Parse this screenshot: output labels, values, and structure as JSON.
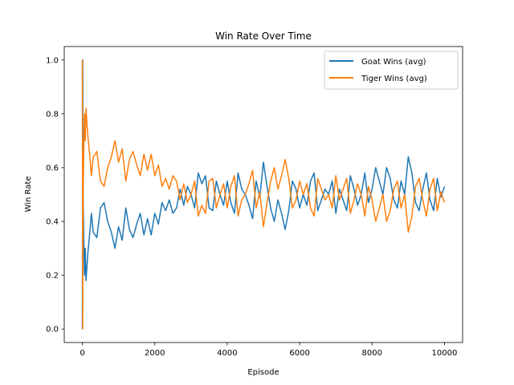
{
  "chart_data": {
    "type": "line",
    "title": "Win Rate Over Time",
    "xlabel": "Episode",
    "ylabel": "Win Rate",
    "xlim": [
      -500,
      10500
    ],
    "ylim": [
      -0.05,
      1.05
    ],
    "xticks": [
      0,
      2000,
      4000,
      6000,
      8000,
      10000
    ],
    "yticks": [
      0.0,
      0.2,
      0.4,
      0.6,
      0.8,
      1.0
    ],
    "xtick_labels": [
      "0",
      "2000",
      "4000",
      "6000",
      "8000",
      "10000"
    ],
    "ytick_labels": [
      "0.0",
      "0.2",
      "0.4",
      "0.6",
      "0.8",
      "1.0"
    ],
    "grid": false,
    "legend_position": "top-right",
    "series": [
      {
        "name": "Goat Wins (avg)",
        "color": "#1f77b4",
        "x": [
          0,
          10,
          20,
          40,
          60,
          80,
          100,
          150,
          200,
          250,
          300,
          400,
          500,
          600,
          700,
          800,
          900,
          1000,
          1100,
          1200,
          1300,
          1400,
          1500,
          1600,
          1700,
          1800,
          1900,
          2000,
          2100,
          2200,
          2300,
          2400,
          2500,
          2600,
          2700,
          2800,
          2900,
          3000,
          3100,
          3200,
          3300,
          3400,
          3500,
          3600,
          3700,
          3800,
          3900,
          4000,
          4100,
          4200,
          4300,
          4400,
          4500,
          4600,
          4700,
          4800,
          4900,
          5000,
          5100,
          5200,
          5300,
          5400,
          5500,
          5600,
          5700,
          5800,
          5900,
          6000,
          6100,
          6200,
          6300,
          6400,
          6500,
          6600,
          6700,
          6800,
          6900,
          7000,
          7100,
          7200,
          7300,
          7400,
          7500,
          7600,
          7700,
          7800,
          7900,
          8000,
          8100,
          8200,
          8300,
          8400,
          8500,
          8600,
          8700,
          8800,
          8900,
          9000,
          9100,
          9200,
          9300,
          9400,
          9500,
          9600,
          9700,
          9800,
          9900,
          10000
        ],
        "y": [
          0.0,
          1.0,
          0.5,
          0.33,
          0.2,
          0.3,
          0.18,
          0.28,
          0.35,
          0.43,
          0.36,
          0.34,
          0.45,
          0.47,
          0.4,
          0.36,
          0.3,
          0.38,
          0.33,
          0.45,
          0.37,
          0.34,
          0.39,
          0.43,
          0.35,
          0.41,
          0.35,
          0.43,
          0.39,
          0.47,
          0.44,
          0.48,
          0.43,
          0.45,
          0.52,
          0.46,
          0.53,
          0.5,
          0.45,
          0.58,
          0.54,
          0.57,
          0.45,
          0.44,
          0.55,
          0.5,
          0.46,
          0.55,
          0.47,
          0.43,
          0.58,
          0.52,
          0.5,
          0.46,
          0.41,
          0.55,
          0.49,
          0.62,
          0.53,
          0.45,
          0.4,
          0.48,
          0.43,
          0.37,
          0.44,
          0.55,
          0.52,
          0.45,
          0.5,
          0.46,
          0.55,
          0.58,
          0.44,
          0.48,
          0.52,
          0.5,
          0.55,
          0.43,
          0.52,
          0.48,
          0.44,
          0.57,
          0.52,
          0.46,
          0.5,
          0.58,
          0.47,
          0.52,
          0.6,
          0.55,
          0.5,
          0.6,
          0.56,
          0.48,
          0.45,
          0.55,
          0.5,
          0.64,
          0.58,
          0.47,
          0.44,
          0.52,
          0.58,
          0.48,
          0.44,
          0.56,
          0.49,
          0.53
        ]
      },
      {
        "name": "Tiger Wins (avg)",
        "color": "#ff7f0e",
        "x": [
          0,
          10,
          20,
          40,
          60,
          80,
          100,
          150,
          200,
          250,
          300,
          400,
          500,
          600,
          700,
          800,
          900,
          1000,
          1100,
          1200,
          1300,
          1400,
          1500,
          1600,
          1700,
          1800,
          1900,
          2000,
          2100,
          2200,
          2300,
          2400,
          2500,
          2600,
          2700,
          2800,
          2900,
          3000,
          3100,
          3200,
          3300,
          3400,
          3500,
          3600,
          3700,
          3800,
          3900,
          4000,
          4100,
          4200,
          4300,
          4400,
          4500,
          4600,
          4700,
          4800,
          4900,
          5000,
          5100,
          5200,
          5300,
          5400,
          5500,
          5600,
          5700,
          5800,
          5900,
          6000,
          6100,
          6200,
          6300,
          6400,
          6500,
          6600,
          6700,
          6800,
          6900,
          7000,
          7100,
          7200,
          7300,
          7400,
          7500,
          7600,
          7700,
          7800,
          7900,
          8000,
          8100,
          8200,
          8300,
          8400,
          8500,
          8600,
          8700,
          8800,
          8900,
          9000,
          9100,
          9200,
          9300,
          9400,
          9500,
          9600,
          9700,
          9800,
          9900,
          10000
        ],
        "y": [
          1.0,
          0.0,
          0.5,
          0.67,
          0.8,
          0.7,
          0.82,
          0.72,
          0.65,
          0.57,
          0.64,
          0.66,
          0.55,
          0.53,
          0.6,
          0.64,
          0.7,
          0.62,
          0.67,
          0.55,
          0.63,
          0.66,
          0.61,
          0.57,
          0.65,
          0.59,
          0.65,
          0.57,
          0.61,
          0.53,
          0.56,
          0.52,
          0.57,
          0.55,
          0.48,
          0.54,
          0.47,
          0.5,
          0.55,
          0.42,
          0.46,
          0.43,
          0.55,
          0.56,
          0.45,
          0.5,
          0.54,
          0.45,
          0.53,
          0.57,
          0.42,
          0.48,
          0.5,
          0.54,
          0.59,
          0.45,
          0.51,
          0.38,
          0.47,
          0.55,
          0.6,
          0.52,
          0.57,
          0.63,
          0.56,
          0.45,
          0.48,
          0.55,
          0.5,
          0.54,
          0.45,
          0.42,
          0.56,
          0.52,
          0.48,
          0.5,
          0.45,
          0.57,
          0.48,
          0.52,
          0.56,
          0.43,
          0.48,
          0.54,
          0.5,
          0.42,
          0.53,
          0.48,
          0.4,
          0.45,
          0.5,
          0.4,
          0.44,
          0.52,
          0.55,
          0.45,
          0.5,
          0.36,
          0.42,
          0.53,
          0.56,
          0.48,
          0.42,
          0.52,
          0.56,
          0.44,
          0.51,
          0.47
        ]
      }
    ]
  }
}
